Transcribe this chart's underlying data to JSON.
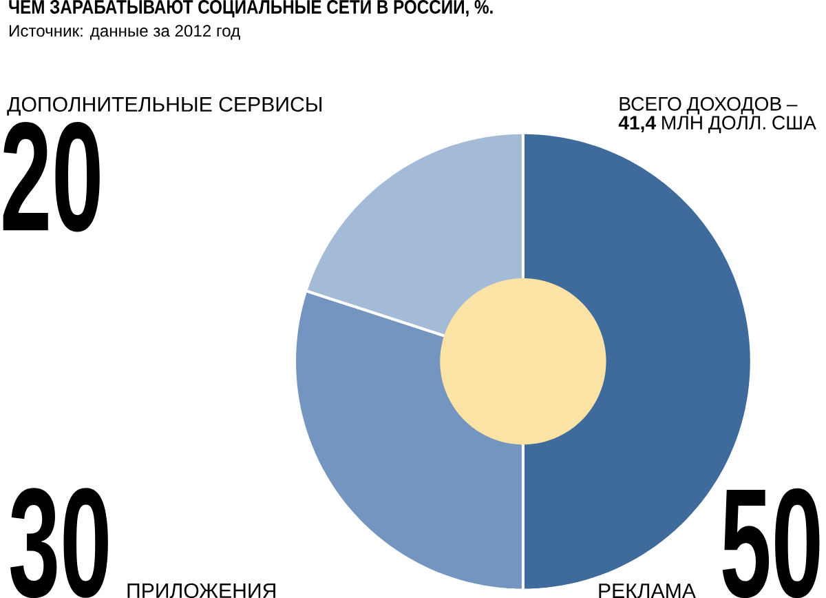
{
  "chart_data": {
    "type": "donut",
    "title": "ЧЕМ ЗАРАБАТЫВАЮТ СОЦИАЛЬНЫЕ СЕТИ В  РОССИИ, %.",
    "subtitle": "Источник: данные за 2012 год",
    "categories": [
      "РЕКЛАМА",
      "ПРИЛОЖЕНИЯ",
      "ДОПОЛНИТЕЛЬНЫЕ СЕРВИСЫ"
    ],
    "values": [
      50,
      30,
      20
    ],
    "colors": [
      "#3e6a9c",
      "#7395c0",
      "#a3bbd7"
    ],
    "data_labels": true,
    "annotations": [
      "ВСЕГО ДОХОДОВ – **41,4** МЛН ДОЛЛ. США"
    ]
  }
}
